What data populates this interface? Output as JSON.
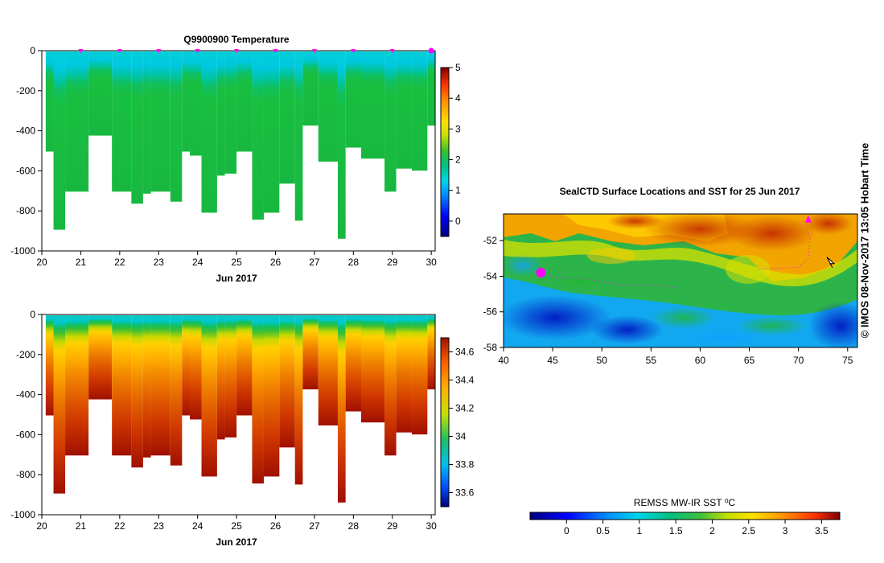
{
  "chart_data": [
    {
      "type": "heatmap",
      "title": "Q9900900  Temperature",
      "xlabel": "Jun 2017",
      "ylabel": "",
      "xlim": [
        20,
        30.1
      ],
      "ylim": [
        -1000,
        0
      ],
      "x_ticks": [
        "20",
        "21",
        "22",
        "23",
        "24",
        "25",
        "26",
        "27",
        "28",
        "29",
        "30"
      ],
      "y_ticks": [
        "0",
        "-200",
        "-400",
        "-600",
        "-800",
        "-1000"
      ],
      "colorbar": {
        "min": -0.5,
        "max": 5,
        "ticks": [
          "0",
          "1",
          "2",
          "3",
          "4",
          "5"
        ]
      },
      "surface_markers_x": [
        21,
        22,
        23,
        24,
        25,
        26,
        27,
        28,
        29,
        30
      ],
      "profiles": [
        {
          "x0": 20.1,
          "x1": 20.3,
          "max_depth": -500
        },
        {
          "x0": 20.3,
          "x1": 20.6,
          "max_depth": -890
        },
        {
          "x0": 20.6,
          "x1": 21.2,
          "max_depth": -700
        },
        {
          "x0": 21.2,
          "x1": 21.8,
          "max_depth": -420
        },
        {
          "x0": 21.8,
          "x1": 22.3,
          "max_depth": -700
        },
        {
          "x0": 22.3,
          "x1": 22.6,
          "max_depth": -760
        },
        {
          "x0": 22.6,
          "x1": 22.8,
          "max_depth": -710
        },
        {
          "x0": 22.8,
          "x1": 23.3,
          "max_depth": -700
        },
        {
          "x0": 23.3,
          "x1": 23.6,
          "max_depth": -750
        },
        {
          "x0": 23.6,
          "x1": 23.8,
          "max_depth": -500
        },
        {
          "x0": 23.8,
          "x1": 24.1,
          "max_depth": -520
        },
        {
          "x0": 24.1,
          "x1": 24.5,
          "max_depth": -805
        },
        {
          "x0": 24.5,
          "x1": 24.7,
          "max_depth": -620
        },
        {
          "x0": 24.7,
          "x1": 25.0,
          "max_depth": -610
        },
        {
          "x0": 25.0,
          "x1": 25.4,
          "max_depth": -500
        },
        {
          "x0": 25.4,
          "x1": 25.7,
          "max_depth": -840
        },
        {
          "x0": 25.7,
          "x1": 26.1,
          "max_depth": -805
        },
        {
          "x0": 26.1,
          "x1": 26.5,
          "max_depth": -660
        },
        {
          "x0": 26.5,
          "x1": 26.7,
          "max_depth": -845
        },
        {
          "x0": 26.7,
          "x1": 27.1,
          "max_depth": -370
        },
        {
          "x0": 27.1,
          "x1": 27.6,
          "max_depth": -550
        },
        {
          "x0": 27.6,
          "x1": 27.8,
          "max_depth": -935
        },
        {
          "x0": 27.8,
          "x1": 28.2,
          "max_depth": -480
        },
        {
          "x0": 28.2,
          "x1": 28.8,
          "max_depth": -535
        },
        {
          "x0": 28.8,
          "x1": 29.1,
          "max_depth": -700
        },
        {
          "x0": 29.1,
          "x1": 29.5,
          "max_depth": -585
        },
        {
          "x0": 29.5,
          "x1": 29.9,
          "max_depth": -595
        },
        {
          "x0": 29.9,
          "x1": 30.1,
          "max_depth": -370
        }
      ]
    },
    {
      "type": "heatmap",
      "title": "",
      "xlabel": "Jun 2017",
      "ylabel": "",
      "xlim": [
        20,
        30.1
      ],
      "ylim": [
        -1000,
        0
      ],
      "x_ticks": [
        "20",
        "21",
        "22",
        "23",
        "24",
        "25",
        "26",
        "27",
        "28",
        "29",
        "30"
      ],
      "y_ticks": [
        "0",
        "-200",
        "-400",
        "-600",
        "-800",
        "-1000"
      ],
      "colorbar": {
        "min": 33.5,
        "max": 34.7,
        "ticks": [
          "33.6",
          "33.8",
          "34",
          "34.2",
          "34.4",
          "34.6"
        ]
      },
      "uses_profiles_of_chart": 0
    },
    {
      "type": "heatmap",
      "title": "SealCTD Surface Locations and SST for 25 Jun 2017",
      "xlim": [
        40,
        76
      ],
      "ylim": [
        -58,
        -50.5
      ],
      "x_ticks": [
        "40",
        "45",
        "50",
        "55",
        "60",
        "65",
        "70",
        "75"
      ],
      "y_ticks": [
        "-52",
        "-54",
        "-56",
        "-58"
      ],
      "colorbar": {
        "label": "REMSS MW-IR SST ⁰C",
        "min": -0.5,
        "max": 3.75,
        "ticks": [
          "0",
          "0.5",
          "1",
          "1.5",
          "2",
          "2.5",
          "3",
          "3.5"
        ]
      },
      "tracks": [
        {
          "points": [
            [
              43.8,
              -53.8
            ],
            [
              45.5,
              -54.1
            ],
            [
              48,
              -54.1
            ],
            [
              52,
              -54.5
            ],
            [
              56,
              -54.5
            ],
            [
              58,
              -54.7
            ]
          ]
        },
        {
          "points": [
            [
              70.5,
              -50.9
            ],
            [
              71.2,
              -51.8
            ],
            [
              71,
              -53
            ],
            [
              70,
              -53.5
            ],
            [
              66,
              -53.6
            ]
          ]
        }
      ],
      "markers": [
        {
          "lon": 43.8,
          "lat": -53.8,
          "kind": "blob"
        },
        {
          "lon": 71.0,
          "lat": -50.8,
          "kind": "star"
        },
        {
          "lon": 73.3,
          "lat": -53.2,
          "kind": "pointer"
        }
      ]
    }
  ],
  "page": {
    "side_text": "© IMOS 08-Nov-2017 13:05 Hobart Time"
  }
}
